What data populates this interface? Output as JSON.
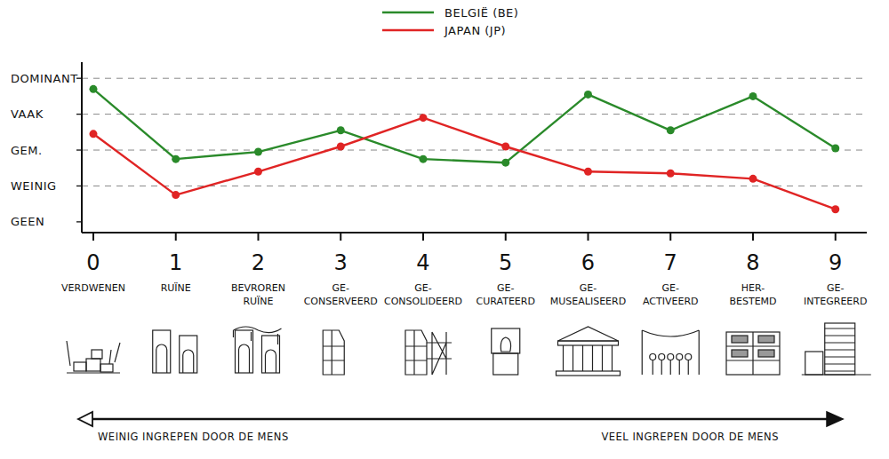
{
  "chart_data": {
    "type": "line",
    "x": [
      0,
      1,
      2,
      3,
      4,
      5,
      6,
      7,
      8,
      9
    ],
    "xlim": [
      -0.14,
      9.38
    ],
    "xticks": [
      0,
      1,
      2,
      3,
      4,
      5,
      6,
      7,
      8,
      9
    ],
    "ylim": [
      -0.3,
      4.45
    ],
    "yticks": [
      {
        "value": 0,
        "label": "GEEN"
      },
      {
        "value": 1,
        "label": "WEINIG"
      },
      {
        "value": 2,
        "label": "GEM."
      },
      {
        "value": 3,
        "label": "VAAK"
      },
      {
        "value": 4,
        "label": "DOMINANT"
      }
    ],
    "grid": true,
    "legend": "top",
    "series": [
      {
        "name": "BELGIË (BE)",
        "color": "#2a8a2a",
        "marker": "circle",
        "line_style": "solid",
        "values": [
          3.7,
          1.75,
          1.95,
          2.55,
          1.75,
          1.65,
          3.55,
          2.55,
          3.5,
          2.05
        ]
      },
      {
        "name": "JAPAN (JP)",
        "color": "#e02424",
        "marker": "circle",
        "line_style": "solid",
        "values": [
          2.45,
          0.75,
          1.4,
          2.1,
          2.9,
          2.1,
          1.4,
          1.35,
          1.2,
          0.35
        ]
      }
    ],
    "stage_labels": [
      [
        "VERDWENEN"
      ],
      [
        "RUÏNE"
      ],
      [
        "BEVROREN",
        "RUÏNE"
      ],
      [
        "GE-",
        "CONSERVEERD"
      ],
      [
        "GE-",
        "CONSOLIDEERD"
      ],
      [
        "GE-",
        "CURATEERD"
      ],
      [
        "GE-",
        "MUSEALISEERD"
      ],
      [
        "GE-",
        "ACTIVEERD"
      ],
      [
        "HER-",
        "BESTEMD"
      ],
      [
        "GE-",
        "INTEGREERD"
      ]
    ],
    "annotations": [
      "WEINIG INGREPEN DOOR DE MENS",
      "VEEL INGREPEN DOOR DE MENS"
    ]
  }
}
